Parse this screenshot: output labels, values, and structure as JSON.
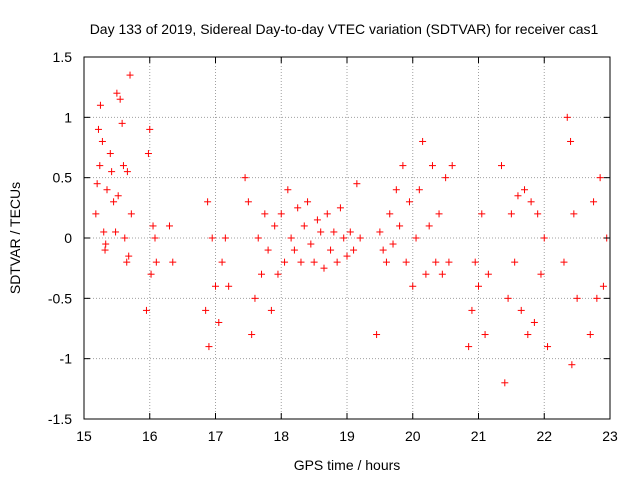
{
  "chart_data": {
    "type": "scatter",
    "title": "Day 133 of 2019, Sidereal Day-to-day VTEC variation (SDTVAR) for receiver cas1",
    "xlabel": "GPS time / hours",
    "ylabel": "SDTVAR / TECUs",
    "xlim": [
      15,
      23
    ],
    "ylim": [
      -1.5,
      1.5
    ],
    "xticks": [
      15,
      16,
      17,
      18,
      19,
      20,
      21,
      22,
      23
    ],
    "xtick_labels": [
      "15",
      "16",
      "17",
      "18",
      "19",
      "20",
      "21",
      "22",
      "23"
    ],
    "yticks": [
      -1.5,
      -1,
      -0.5,
      0,
      0.5,
      1,
      1.5
    ],
    "ytick_labels": [
      "-1.5",
      "-1",
      "-0.5",
      "0",
      "0.5",
      "1",
      "1.5"
    ],
    "grid": true,
    "marker": "+",
    "color": "#ff0000",
    "series": [
      {
        "name": "SDTVAR",
        "points": [
          [
            15.2,
            0.45
          ],
          [
            15.22,
            0.9
          ],
          [
            15.25,
            1.1
          ],
          [
            15.28,
            0.8
          ],
          [
            15.3,
            0.05
          ],
          [
            15.32,
            -0.1
          ],
          [
            15.35,
            0.4
          ],
          [
            15.4,
            0.7
          ],
          [
            15.45,
            0.3
          ],
          [
            15.5,
            1.2
          ],
          [
            15.55,
            1.15
          ],
          [
            15.6,
            0.6
          ],
          [
            15.62,
            0.0
          ],
          [
            15.65,
            -0.2
          ],
          [
            15.7,
            1.35
          ],
          [
            15.72,
            0.2
          ],
          [
            15.18,
            0.2
          ],
          [
            15.24,
            0.6
          ],
          [
            15.33,
            -0.05
          ],
          [
            15.42,
            0.55
          ],
          [
            15.48,
            0.05
          ],
          [
            15.52,
            0.35
          ],
          [
            15.58,
            0.95
          ],
          [
            15.66,
            0.55
          ],
          [
            15.68,
            -0.15
          ],
          [
            15.95,
            -0.6
          ],
          [
            15.98,
            0.7
          ],
          [
            16.0,
            0.9
          ],
          [
            16.02,
            -0.3
          ],
          [
            16.05,
            0.1
          ],
          [
            16.08,
            0.0
          ],
          [
            16.1,
            -0.2
          ],
          [
            16.3,
            0.1
          ],
          [
            16.35,
            -0.2
          ],
          [
            16.85,
            -0.6
          ],
          [
            16.88,
            0.3
          ],
          [
            16.9,
            -0.9
          ],
          [
            16.95,
            0.0
          ],
          [
            17.0,
            -0.4
          ],
          [
            17.05,
            -0.7
          ],
          [
            17.1,
            -0.2
          ],
          [
            17.15,
            0.0
          ],
          [
            17.2,
            -0.4
          ],
          [
            17.45,
            0.5
          ],
          [
            17.5,
            0.3
          ],
          [
            17.55,
            -0.8
          ],
          [
            17.6,
            -0.5
          ],
          [
            17.65,
            0.0
          ],
          [
            17.7,
            -0.3
          ],
          [
            17.75,
            0.2
          ],
          [
            17.8,
            -0.1
          ],
          [
            17.85,
            -0.6
          ],
          [
            17.9,
            0.1
          ],
          [
            17.95,
            -0.3
          ],
          [
            18.0,
            0.2
          ],
          [
            18.05,
            -0.2
          ],
          [
            18.1,
            0.4
          ],
          [
            18.15,
            0.0
          ],
          [
            18.2,
            -0.1
          ],
          [
            18.25,
            0.25
          ],
          [
            18.3,
            -0.2
          ],
          [
            18.35,
            0.1
          ],
          [
            18.4,
            0.3
          ],
          [
            18.45,
            -0.05
          ],
          [
            18.5,
            -0.2
          ],
          [
            18.55,
            0.15
          ],
          [
            18.6,
            0.05
          ],
          [
            18.65,
            -0.25
          ],
          [
            18.7,
            0.2
          ],
          [
            18.75,
            -0.1
          ],
          [
            18.8,
            0.05
          ],
          [
            18.85,
            -0.2
          ],
          [
            18.9,
            0.25
          ],
          [
            18.95,
            0.0
          ],
          [
            19.0,
            -0.15
          ],
          [
            19.05,
            0.05
          ],
          [
            19.1,
            -0.1
          ],
          [
            19.15,
            0.45
          ],
          [
            19.2,
            0.0
          ],
          [
            19.45,
            -0.8
          ],
          [
            19.5,
            0.05
          ],
          [
            19.55,
            -0.1
          ],
          [
            19.6,
            -0.2
          ],
          [
            19.65,
            0.2
          ],
          [
            19.7,
            -0.05
          ],
          [
            19.75,
            0.4
          ],
          [
            19.8,
            0.1
          ],
          [
            19.85,
            0.6
          ],
          [
            19.9,
            -0.2
          ],
          [
            19.95,
            0.3
          ],
          [
            20.0,
            -0.4
          ],
          [
            20.05,
            0.0
          ],
          [
            20.1,
            0.4
          ],
          [
            20.15,
            0.8
          ],
          [
            20.2,
            -0.3
          ],
          [
            20.25,
            0.1
          ],
          [
            20.3,
            0.6
          ],
          [
            20.35,
            -0.2
          ],
          [
            20.4,
            0.2
          ],
          [
            20.45,
            -0.3
          ],
          [
            20.5,
            0.5
          ],
          [
            20.55,
            -0.2
          ],
          [
            20.6,
            0.6
          ],
          [
            20.85,
            -0.9
          ],
          [
            20.9,
            -0.6
          ],
          [
            20.95,
            -0.2
          ],
          [
            21.0,
            -0.4
          ],
          [
            21.05,
            0.2
          ],
          [
            21.1,
            -0.8
          ],
          [
            21.15,
            -0.3
          ],
          [
            21.35,
            0.6
          ],
          [
            21.4,
            -1.2
          ],
          [
            21.45,
            -0.5
          ],
          [
            21.5,
            0.2
          ],
          [
            21.55,
            -0.2
          ],
          [
            21.6,
            0.35
          ],
          [
            21.65,
            -0.6
          ],
          [
            21.7,
            0.4
          ],
          [
            21.75,
            -0.8
          ],
          [
            21.8,
            0.3
          ],
          [
            21.85,
            -0.7
          ],
          [
            21.9,
            0.2
          ],
          [
            21.95,
            -0.3
          ],
          [
            22.0,
            0.0
          ],
          [
            22.05,
            -0.9
          ],
          [
            22.3,
            -0.2
          ],
          [
            22.35,
            1.0
          ],
          [
            22.4,
            0.8
          ],
          [
            22.42,
            -1.05
          ],
          [
            22.45,
            0.2
          ],
          [
            22.5,
            -0.5
          ],
          [
            22.7,
            -0.8
          ],
          [
            22.75,
            0.3
          ],
          [
            22.8,
            -0.5
          ],
          [
            22.85,
            0.5
          ],
          [
            22.9,
            -0.4
          ],
          [
            22.95,
            0.0
          ]
        ]
      }
    ]
  }
}
